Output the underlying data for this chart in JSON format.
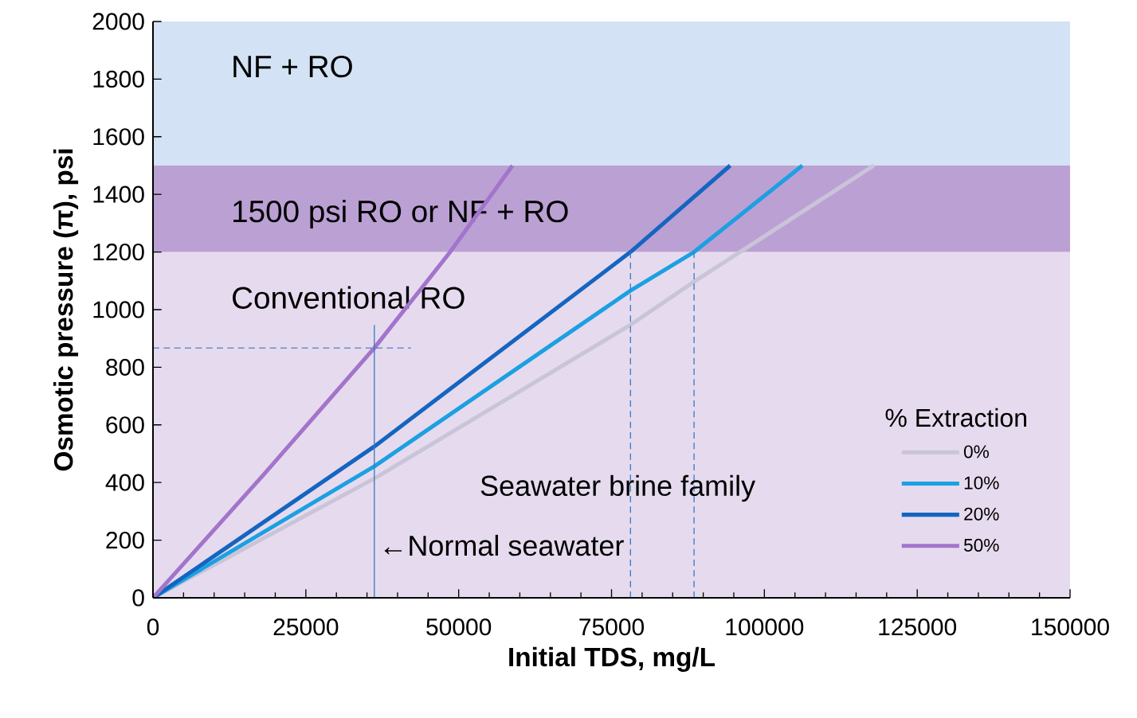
{
  "chart_data": {
    "type": "line",
    "xlabel": "Initial TDS, mg/L",
    "ylabel": "Osmotic pressure (π), psi",
    "legend_title": "% Extraction",
    "xlim": [
      0,
      150000
    ],
    "ylim": [
      0,
      2000
    ],
    "xticks": [
      0,
      25000,
      50000,
      75000,
      100000,
      125000,
      150000
    ],
    "yticks": [
      0,
      200,
      400,
      600,
      800,
      1000,
      1200,
      1400,
      1600,
      1800,
      2000
    ],
    "legend": "right",
    "series": [
      {
        "name": "0%",
        "color": "#c9c4d8",
        "x": [
          0,
          36200,
          78100,
          88500,
          117900
        ],
        "values": [
          0,
          414,
          947,
          1097,
          1500
        ]
      },
      {
        "name": "10%",
        "color": "#1ca0e2",
        "x": [
          0,
          36200,
          78100,
          88500,
          106200
        ],
        "values": [
          0,
          456,
          1066,
          1200,
          1500
        ]
      },
      {
        "name": "20%",
        "color": "#1565c0",
        "x": [
          0,
          36200,
          78100,
          94400
        ],
        "values": [
          0,
          525,
          1200,
          1500
        ]
      },
      {
        "name": "50%",
        "color": "#a374cc",
        "x": [
          0,
          18000,
          36200,
          48600,
          58800
        ],
        "values": [
          0,
          425,
          867,
          1200,
          1500
        ]
      },
      {
        "color": "#3a78c8",
        "line_style": "dashed",
        "x": [
          0,
          42200
        ],
        "values": [
          867,
          867
        ]
      },
      {
        "color": "#3a78c8",
        "line_style": "solid",
        "x": [
          36200,
          36200
        ],
        "values": [
          0,
          947
        ]
      },
      {
        "color": "#3a78c8",
        "line_style": "dashed",
        "x": [
          78100,
          78100
        ],
        "values": [
          0,
          1200
        ]
      },
      {
        "color": "#3a78c8",
        "line_style": "dashed",
        "x": [
          88500,
          88500
        ],
        "values": [
          0,
          1200
        ]
      }
    ],
    "bands": [
      {
        "axis": "y",
        "from": 0,
        "to": 1200,
        "label": "Conventional RO",
        "color": "#e6dbee"
      },
      {
        "axis": "y",
        "from": 1200,
        "to": 1500,
        "label": "1500 psi RO or NF + RO",
        "color": "#bba0d4"
      },
      {
        "axis": "y",
        "from": 1500,
        "to": 2000,
        "label": "NF + RO",
        "color": "#d3e2f4"
      }
    ],
    "annotations": [
      {
        "text": "←Normal seawater",
        "x": 36200,
        "y": 182
      },
      "Seawater brine family"
    ]
  }
}
